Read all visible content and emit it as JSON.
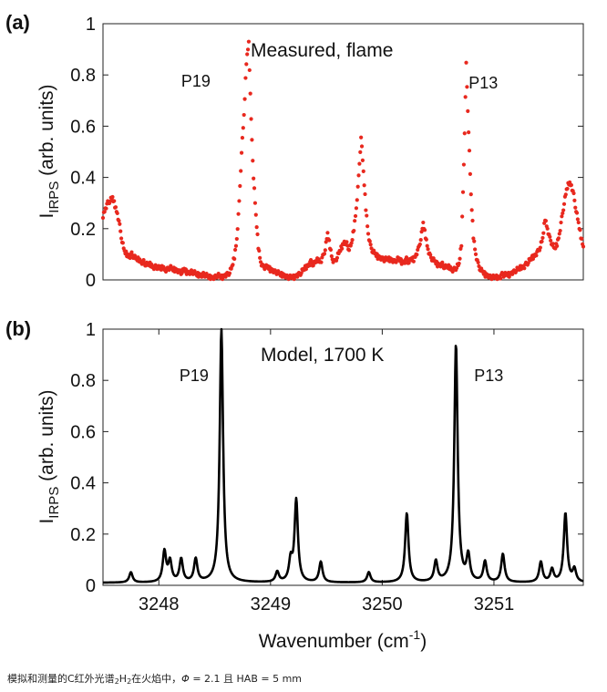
{
  "figure_caption": {
    "text_a": "模拟和测量的C红外光谱",
    "sub_1": "2",
    "text_b": "H",
    "sub_2": "2",
    "text_c": "在火焰中，",
    "phi": "Φ",
    "text_d": " = 2.1 且 HAB = 5 mm"
  },
  "colors": {
    "measured": "#e8281e",
    "model": "#000000",
    "axis": "#222222"
  },
  "chart_data": [
    {
      "panel": "(a)",
      "type": "scatter",
      "annotation": "Measured, flame",
      "peak_labels": [
        {
          "text": "P19",
          "x": 3248.56
        },
        {
          "text": "P13",
          "x": 3250.66
        }
      ],
      "ylabel_main": "I",
      "ylabel_sub": "IRPS",
      "ylabel_rest": " (arb. units)",
      "xlim": [
        3247.5,
        3251.8
      ],
      "ylim": [
        0,
        1
      ],
      "yticks": [
        0,
        0.2,
        0.4,
        0.6,
        0.8,
        1
      ],
      "ytick_labels": [
        "0",
        "0.2",
        "0.4",
        "0.6",
        "0.8",
        "1"
      ],
      "points_x_start": 3247.5,
      "points_x_end": 3251.8,
      "points_y": [
        0.25,
        0.28,
        0.3,
        0.31,
        0.32,
        0.29,
        0.26,
        0.21,
        0.15,
        0.11,
        0.1,
        0.09,
        0.1,
        0.09,
        0.08,
        0.08,
        0.07,
        0.07,
        0.06,
        0.06,
        0.06,
        0.05,
        0.05,
        0.05,
        0.04,
        0.05,
        0.04,
        0.04,
        0.05,
        0.04,
        0.04,
        0.04,
        0.03,
        0.03,
        0.04,
        0.03,
        0.03,
        0.03,
        0.03,
        0.02,
        0.02,
        0.02,
        0.02,
        0.02,
        0.01,
        0.01,
        0.01,
        0.01,
        0.02,
        0.01,
        0.01,
        0.02,
        0.02,
        0.03,
        0.05,
        0.09,
        0.16,
        0.3,
        0.5,
        0.64,
        0.85,
        0.93,
        0.62,
        0.4,
        0.25,
        0.13,
        0.07,
        0.05,
        0.05,
        0.05,
        0.04,
        0.04,
        0.03,
        0.03,
        0.02,
        0.02,
        0.02,
        0.01,
        0.01,
        0.01,
        0.01,
        0.02,
        0.02,
        0.03,
        0.04,
        0.05,
        0.06,
        0.07,
        0.06,
        0.07,
        0.08,
        0.07,
        0.09,
        0.12,
        0.18,
        0.13,
        0.08,
        0.07,
        0.09,
        0.11,
        0.13,
        0.15,
        0.14,
        0.12,
        0.14,
        0.2,
        0.28,
        0.4,
        0.56,
        0.42,
        0.28,
        0.18,
        0.13,
        0.11,
        0.1,
        0.09,
        0.09,
        0.08,
        0.08,
        0.08,
        0.08,
        0.08,
        0.07,
        0.08,
        0.08,
        0.07,
        0.07,
        0.08,
        0.07,
        0.08,
        0.08,
        0.1,
        0.12,
        0.16,
        0.22,
        0.17,
        0.12,
        0.09,
        0.08,
        0.07,
        0.06,
        0.06,
        0.06,
        0.05,
        0.05,
        0.05,
        0.04,
        0.04,
        0.05,
        0.06,
        0.14,
        0.45,
        0.84,
        0.58,
        0.33,
        0.17,
        0.1,
        0.06,
        0.04,
        0.03,
        0.02,
        0.02,
        0.01,
        0.01,
        0.01,
        0.01,
        0.01,
        0.02,
        0.02,
        0.02,
        0.02,
        0.03,
        0.03,
        0.04,
        0.04,
        0.05,
        0.05,
        0.06,
        0.07,
        0.08,
        0.09,
        0.1,
        0.11,
        0.13,
        0.16,
        0.24,
        0.2,
        0.16,
        0.14,
        0.12,
        0.14,
        0.18,
        0.24,
        0.3,
        0.35,
        0.38,
        0.37,
        0.33,
        0.27,
        0.22,
        0.17,
        0.13
      ]
    },
    {
      "panel": "(b)",
      "type": "line",
      "annotation": "Model, 1700 K",
      "peak_labels": [
        {
          "text": "P19",
          "x": 3248.56
        },
        {
          "text": "P13",
          "x": 3250.66
        }
      ],
      "ylabel_main": "I",
      "ylabel_sub": "IRPS",
      "ylabel_rest": " (arb. units)",
      "xlabel_main": "Wavenumber (cm",
      "xlabel_sup": "-1",
      "xlabel_end": ")",
      "xlim": [
        3247.5,
        3251.8
      ],
      "ylim": [
        0,
        1
      ],
      "yticks": [
        0,
        0.2,
        0.4,
        0.6,
        0.8,
        1
      ],
      "ytick_labels": [
        "0",
        "0.2",
        "0.4",
        "0.6",
        "0.8",
        "1"
      ],
      "xticks": [
        3248,
        3249,
        3250,
        3251
      ],
      "xtick_labels": [
        "3248",
        "3249",
        "3250",
        "3251"
      ],
      "baseline": 0.01,
      "linewidth_hwhm": 0.018,
      "peaks": [
        {
          "x": 3247.75,
          "h": 0.04
        },
        {
          "x": 3248.05,
          "h": 0.12
        },
        {
          "x": 3248.1,
          "h": 0.08
        },
        {
          "x": 3248.2,
          "h": 0.09
        },
        {
          "x": 3248.33,
          "h": 0.09
        },
        {
          "x": 3248.56,
          "h": 0.99
        },
        {
          "x": 3249.06,
          "h": 0.04
        },
        {
          "x": 3249.18,
          "h": 0.08
        },
        {
          "x": 3249.23,
          "h": 0.32
        },
        {
          "x": 3249.45,
          "h": 0.08
        },
        {
          "x": 3249.88,
          "h": 0.04
        },
        {
          "x": 3250.22,
          "h": 0.27
        },
        {
          "x": 3250.48,
          "h": 0.08
        },
        {
          "x": 3250.66,
          "h": 0.93
        },
        {
          "x": 3250.77,
          "h": 0.1
        },
        {
          "x": 3250.92,
          "h": 0.08
        },
        {
          "x": 3251.08,
          "h": 0.11
        },
        {
          "x": 3251.42,
          "h": 0.08
        },
        {
          "x": 3251.52,
          "h": 0.05
        },
        {
          "x": 3251.64,
          "h": 0.27
        },
        {
          "x": 3251.72,
          "h": 0.05
        }
      ]
    }
  ]
}
